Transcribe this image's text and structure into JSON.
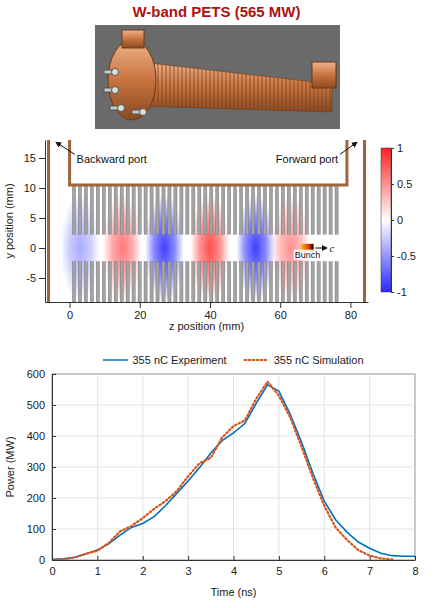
{
  "title": "W-band PETS (565 MW)",
  "chart_data": [
    {
      "type": "field_map",
      "xlabel": "z position (mm)",
      "ylabel": "y position (mm)",
      "xlim": [
        -7,
        85
      ],
      "ylim": [
        -9,
        18
      ],
      "xticks": [
        0,
        20,
        40,
        60,
        80
      ],
      "yticks": [
        -5,
        0,
        5,
        10,
        15
      ],
      "field": {
        "z": [
          3,
          15,
          27,
          40,
          53,
          63
        ],
        "values": [
          -0.4,
          0.6,
          -0.9,
          0.8,
          -0.9,
          0.5
        ]
      },
      "colorbar": {
        "range": [
          -1,
          1
        ],
        "ticks": [
          -1,
          -0.5,
          0,
          0.5,
          1
        ]
      },
      "annotations": {
        "backward_port": "Backward port",
        "forward_port": "Forward port",
        "bunch": "Bunch",
        "velocity": "c"
      }
    },
    {
      "type": "line",
      "xlabel": "Time (ns)",
      "ylabel": "Power (MW)",
      "xlim": [
        0,
        8
      ],
      "ylim": [
        0,
        600
      ],
      "xticks": [
        0,
        1,
        2,
        3,
        4,
        5,
        6,
        7,
        8
      ],
      "yticks": [
        0,
        100,
        200,
        300,
        400,
        500,
        600
      ],
      "grid": true,
      "legend": "top",
      "x": [
        0,
        0.25,
        0.5,
        0.75,
        1,
        1.25,
        1.5,
        1.75,
        2,
        2.25,
        2.5,
        2.75,
        3,
        3.25,
        3.5,
        3.75,
        4,
        4.25,
        4.5,
        4.75,
        5,
        5.25,
        5.5,
        5.75,
        6,
        6.25,
        6.5,
        6.75,
        7,
        7.25,
        7.5,
        7.75,
        8
      ],
      "series": [
        {
          "name": "355 nC Experiment",
          "color": "#0072bd",
          "line_style": "solid",
          "values": [
            2,
            4,
            9,
            20,
            32,
            52,
            80,
            105,
            118,
            140,
            175,
            215,
            255,
            298,
            345,
            385,
            410,
            440,
            505,
            565,
            545,
            470,
            380,
            280,
            190,
            130,
            90,
            58,
            38,
            22,
            14,
            12,
            12
          ]
        },
        {
          "name": "355 nC Simulation",
          "color": "#d95319",
          "line_style": "dotted",
          "values": [
            0,
            2,
            8,
            20,
            30,
            55,
            92,
            110,
            135,
            165,
            190,
            222,
            270,
            312,
            330,
            395,
            432,
            450,
            520,
            575,
            530,
            460,
            365,
            265,
            175,
            105,
            65,
            32,
            14,
            5,
            2,
            null,
            null
          ]
        }
      ]
    }
  ]
}
